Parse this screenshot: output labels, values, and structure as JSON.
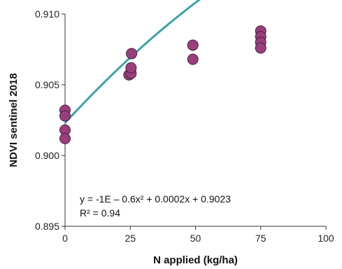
{
  "chart_data": {
    "type": "scatter",
    "title": "",
    "xlabel": "N applied (kg/ha)",
    "ylabel": "NDVI sentinel 2018",
    "xlim": [
      0,
      100
    ],
    "ylim": [
      0.895,
      0.91
    ],
    "x_ticks": [
      "0",
      "25",
      "50",
      "75",
      "100"
    ],
    "y_ticks": [
      "0.895",
      "0.900",
      "0.905",
      "0.910"
    ],
    "grid": false,
    "legend": "none",
    "series": [
      {
        "marker_color": "#9a3f7e",
        "points": [
          {
            "x": 0,
            "y": 0.9032
          },
          {
            "x": 0,
            "y": 0.9028
          },
          {
            "x": 0,
            "y": 0.9018
          },
          {
            "x": 0,
            "y": 0.9012
          },
          {
            "x": 24.5,
            "y": 0.9057
          },
          {
            "x": 25.3,
            "y": 0.9058
          },
          {
            "x": 25.3,
            "y": 0.9062
          },
          {
            "x": 25.5,
            "y": 0.9072
          },
          {
            "x": 49,
            "y": 0.9068
          },
          {
            "x": 49,
            "y": 0.9078
          },
          {
            "x": 75,
            "y": 0.9088
          },
          {
            "x": 75,
            "y": 0.9084
          },
          {
            "x": 75,
            "y": 0.908
          },
          {
            "x": 75,
            "y": 0.9076
          }
        ]
      }
    ],
    "trendline": {
      "color": "#3aa3a8",
      "x_range": [
        0,
        75
      ],
      "coefficients": {
        "a": -6e-07,
        "b": 0.0002,
        "c": 0.9023
      }
    },
    "annotations": {
      "equation": "y = -1E – 0.6x² + 0.0002x + 0.9023",
      "r_squared": "R² = 0.94"
    }
  }
}
